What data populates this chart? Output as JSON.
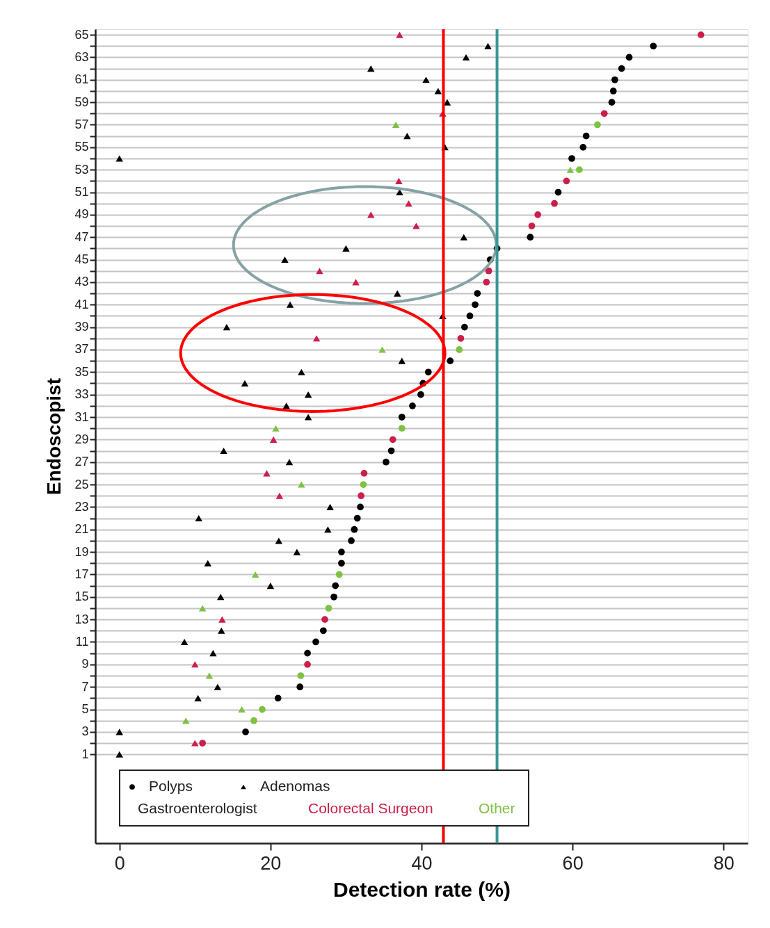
{
  "chart_data": {
    "type": "scatter",
    "xlabel": "Detection rate (%)",
    "ylabel": "Endoscopist",
    "xlim": [
      -3.2,
      83.2
    ],
    "ylim": [
      -6.9,
      65.5
    ],
    "xticks": [
      0,
      20,
      40,
      60,
      80
    ],
    "yticks": [
      1,
      {
        "value": 2,
        "label": null
      },
      3,
      {
        "value": 4,
        "label": null
      },
      5,
      {
        "value": 6,
        "label": null
      },
      7,
      {
        "value": 8,
        "label": null
      },
      9,
      {
        "value": 10,
        "label": null
      },
      11,
      {
        "value": 12,
        "label": null
      },
      13,
      {
        "value": 14,
        "label": null
      },
      15,
      {
        "value": 16,
        "label": null
      },
      17,
      {
        "value": 18,
        "label": null
      },
      19,
      {
        "value": 20,
        "label": null
      },
      21,
      {
        "value": 22,
        "label": null
      },
      23,
      {
        "value": 24,
        "label": null
      },
      25,
      {
        "value": 26,
        "label": null
      },
      27,
      {
        "value": 28,
        "label": null
      },
      29,
      {
        "value": 30,
        "label": null
      },
      31,
      {
        "value": 32,
        "label": null
      },
      33,
      {
        "value": 34,
        "label": null
      },
      35,
      {
        "value": 36,
        "label": null
      },
      37,
      {
        "value": 38,
        "label": null
      },
      39,
      {
        "value": 40,
        "label": null
      },
      41,
      {
        "value": 42,
        "label": null
      },
      43,
      {
        "value": 44,
        "label": null
      },
      45,
      {
        "value": 46,
        "label": null
      },
      47,
      {
        "value": 48,
        "label": null
      },
      49,
      {
        "value": 50,
        "label": null
      },
      51,
      {
        "value": 52,
        "label": null
      },
      53,
      {
        "value": 54,
        "label": null
      },
      55,
      {
        "value": 56,
        "label": null
      },
      57,
      {
        "value": 58,
        "label": null
      },
      59,
      {
        "value": 60,
        "label": null
      },
      61,
      {
        "value": 62,
        "label": null
      },
      63,
      {
        "value": 64,
        "label": null
      },
      65
    ],
    "grid": "y",
    "legend": "bottom left",
    "series": [
      {
        "name": "Polyps",
        "marker": "circle",
        "color": "#000000",
        "x": [
          77.0,
          70.7,
          67.5,
          66.5,
          65.6,
          65.4,
          65.2,
          64.2,
          63.3,
          61.8,
          61.4,
          59.9,
          60.9,
          59.2,
          58.1,
          57.6,
          55.4,
          54.6,
          54.4,
          50.0,
          49.1,
          48.9,
          48.6,
          47.4,
          47.1,
          46.4,
          45.7,
          45.2,
          45.0,
          43.8,
          40.9,
          40.2,
          39.9,
          38.8,
          37.4,
          37.4,
          36.2,
          36.0,
          35.3,
          32.4,
          32.3,
          32.0,
          31.9,
          31.5,
          31.1,
          30.7,
          29.4,
          29.4,
          29.1,
          28.6,
          28.4,
          27.7,
          27.2,
          27.0,
          26.0,
          24.9,
          24.9,
          24.0,
          23.9,
          21.0,
          18.9,
          17.8,
          16.7,
          11.0
        ],
        "values": [
          65,
          64,
          63,
          62,
          61,
          60,
          59,
          58,
          57,
          56,
          55,
          54,
          53,
          52,
          51,
          50,
          49,
          48,
          47,
          46,
          45,
          44,
          43,
          42,
          41,
          40,
          39,
          38,
          37,
          36,
          35,
          34,
          33,
          32,
          31,
          30,
          29,
          28,
          27,
          26,
          25,
          24,
          23,
          22,
          21,
          20,
          19,
          18,
          17,
          16,
          15,
          14,
          13,
          12,
          11,
          10,
          9,
          8,
          7,
          6,
          5,
          4,
          3,
          2
        ],
        "colors": [
          "#cc1e4a",
          "#000000",
          "#000000",
          "#000000",
          "#000000",
          "#000000",
          "#000000",
          "#cc1e4a",
          "#7dc242",
          "#000000",
          "#000000",
          "#000000",
          "#7dc242",
          "#cc1e4a",
          "#000000",
          "#cc1e4a",
          "#cc1e4a",
          "#cc1e4a",
          "#000000",
          "#000000",
          "#000000",
          "#cc1e4a",
          "#cc1e4a",
          "#000000",
          "#000000",
          "#000000",
          "#000000",
          "#cc1e4a",
          "#7dc242",
          "#000000",
          "#000000",
          "#000000",
          "#000000",
          "#000000",
          "#000000",
          "#7dc242",
          "#cc1e4a",
          "#000000",
          "#000000",
          "#cc1e4a",
          "#7dc242",
          "#cc1e4a",
          "#000000",
          "#000000",
          "#000000",
          "#000000",
          "#000000",
          "#000000",
          "#7dc242",
          "#000000",
          "#000000",
          "#7dc242",
          "#cc1e4a",
          "#000000",
          "#000000",
          "#000000",
          "#cc1e4a",
          "#7dc242",
          "#000000",
          "#000000",
          "#7dc242",
          "#7dc242",
          "#000000",
          "#cc1e4a"
        ]
      },
      {
        "name": "Adenomas",
        "marker": "triangle",
        "color": "#000000",
        "x": [
          37.1,
          48.8,
          45.9,
          33.3,
          40.6,
          42.2,
          43.4,
          42.8,
          36.6,
          38.1,
          43.1,
          0,
          59.7,
          37.0,
          37.1,
          38.3,
          33.3,
          39.3,
          45.6,
          30.0,
          21.9,
          26.5,
          31.3,
          36.8,
          22.6,
          42.8,
          14.2,
          26.1,
          34.8,
          37.4,
          24.1,
          16.6,
          25.0,
          22.1,
          25.0,
          20.7,
          20.4,
          13.8,
          22.5,
          19.5,
          24.1,
          21.2,
          27.9,
          10.5,
          27.6,
          21.1,
          23.5,
          11.7,
          18.0,
          20.0,
          13.4,
          11.0,
          13.6,
          13.5,
          8.6,
          12.4,
          10.0,
          11.9,
          13.0,
          10.4,
          16.2,
          8.8,
          0,
          10.0,
          0
        ],
        "values": [
          65,
          64,
          63,
          62,
          61,
          60,
          59,
          58,
          57,
          56,
          55,
          54,
          53,
          52,
          51,
          50,
          49,
          48,
          47,
          46,
          45,
          44,
          43,
          42,
          41,
          40,
          39,
          38,
          37,
          36,
          35,
          34,
          33,
          32,
          31,
          30,
          29,
          28,
          27,
          26,
          25,
          24,
          23,
          22,
          21,
          20,
          19,
          18,
          17,
          16,
          15,
          14,
          13,
          12,
          11,
          10,
          9,
          8,
          7,
          6,
          5,
          4,
          3,
          2,
          1
        ],
        "colors": [
          "#cc1e4a",
          "#000000",
          "#000000",
          "#000000",
          "#000000",
          "#000000",
          "#000000",
          "#cc1e4a",
          "#7dc242",
          "#000000",
          "#000000",
          "#000000",
          "#7dc242",
          "#cc1e4a",
          "#000000",
          "#cc1e4a",
          "#cc1e4a",
          "#cc1e4a",
          "#000000",
          "#000000",
          "#000000",
          "#cc1e4a",
          "#cc1e4a",
          "#000000",
          "#000000",
          "#000000",
          "#000000",
          "#cc1e4a",
          "#7dc242",
          "#000000",
          "#000000",
          "#000000",
          "#000000",
          "#000000",
          "#000000",
          "#7dc242",
          "#cc1e4a",
          "#000000",
          "#000000",
          "#cc1e4a",
          "#7dc242",
          "#cc1e4a",
          "#000000",
          "#000000",
          "#000000",
          "#000000",
          "#000000",
          "#000000",
          "#7dc242",
          "#000000",
          "#000000",
          "#7dc242",
          "#cc1e4a",
          "#000000",
          "#000000",
          "#000000",
          "#cc1e4a",
          "#7dc242",
          "#000000",
          "#000000",
          "#7dc242",
          "#7dc242",
          "#000000",
          "#cc1e4a",
          "#000000"
        ]
      },
      {
        "name": "Gastroenterologist",
        "marker": "none",
        "color": "#222222"
      },
      {
        "name": "Colorectal Surgeon",
        "marker": "none",
        "color": "#cc1e4a"
      },
      {
        "name": "Other",
        "marker": "none",
        "color": "#7dc242"
      }
    ],
    "ref_lines": [
      {
        "axis": "x",
        "value": 42.9,
        "color": "#ff0000"
      },
      {
        "axis": "x",
        "value": 50.0,
        "color": "#3a9597"
      }
    ]
  }
}
